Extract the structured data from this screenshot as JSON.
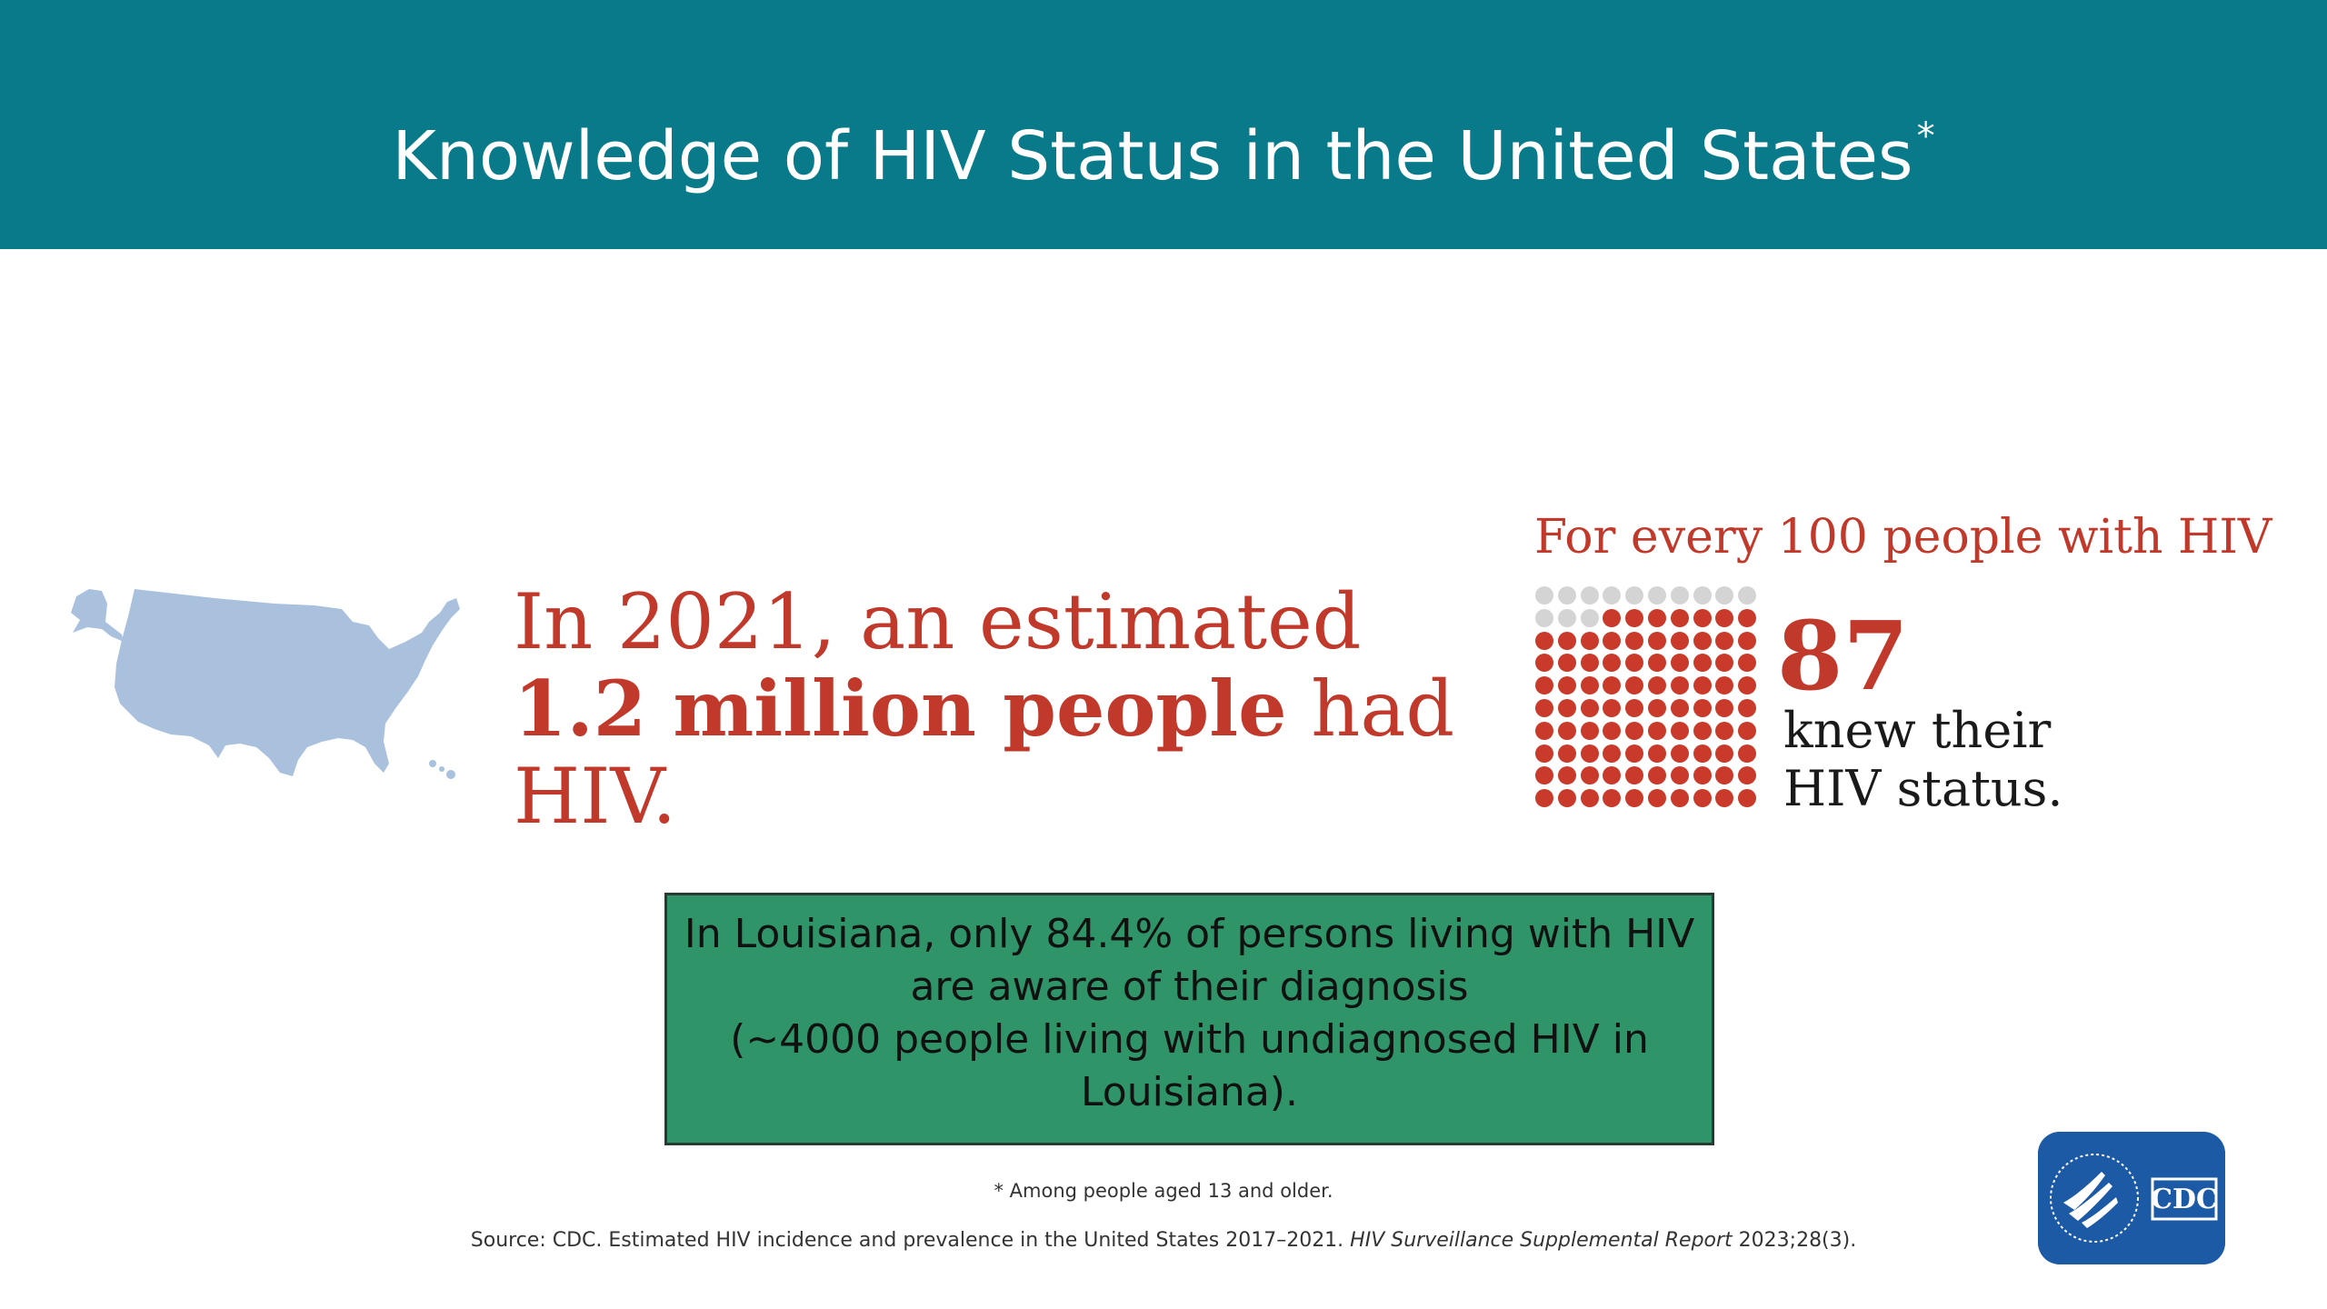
{
  "header": {
    "title": "Knowledge of HIV Status in the United States",
    "title_mark": "*"
  },
  "icons": [
    "us-map-icon",
    "cdc-logo-icon",
    "hhs-eagle-icon"
  ],
  "colors": {
    "header_bg": "#087a8a",
    "accent_red": "#c0392b",
    "map_blue": "#aac1de",
    "dot_gray": "#d4d4d4",
    "callout_green": "#2f9569",
    "logo_blue": "#1d5aa6"
  },
  "stat": {
    "line1": "In 2021, an estimated",
    "line2_bold": "1.2 million people",
    "line2_rest": " had HIV."
  },
  "per_100": {
    "heading": "For every 100 people with HIV",
    "total_dots": 100,
    "highlighted_dots": 87,
    "number": "87",
    "line1": "knew their",
    "line2": "HIV status."
  },
  "callout": {
    "line1": "In Louisiana, only 84.4% of persons living with HIV",
    "line2": "are aware of their diagnosis",
    "line3": "(~4000 people living with undiagnosed HIV in",
    "line4": "Louisiana)."
  },
  "footnote": "* Among people aged 13 and older.",
  "source": {
    "prefix": "Source: CDC. Estimated HIV incidence and prevalence in the United States 2017–2021. ",
    "italic": "HIV Surveillance Supplemental Report",
    "suffix": " 2023;28(3)."
  },
  "logo": {
    "text": "CDC"
  }
}
